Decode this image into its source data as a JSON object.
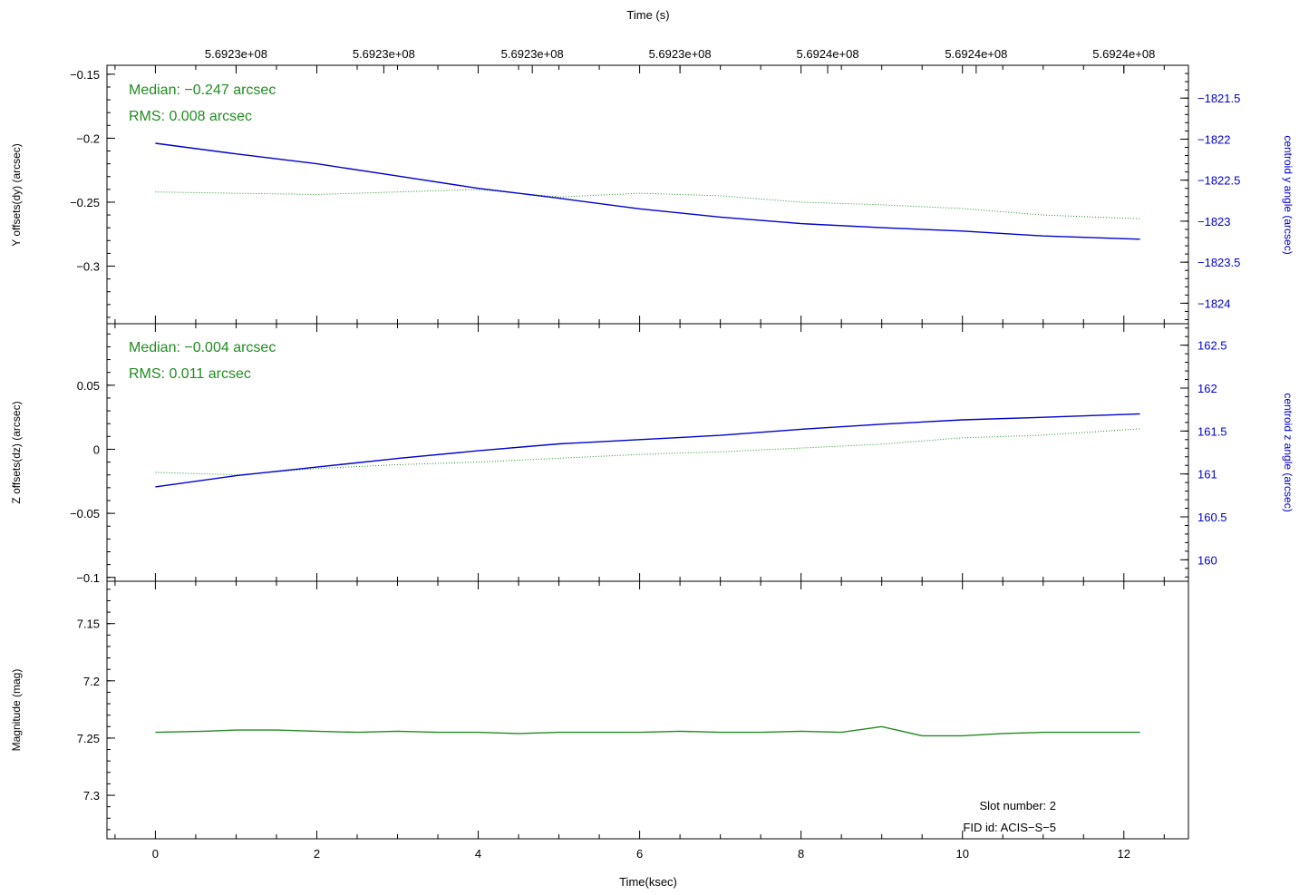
{
  "top_axis": {
    "label": "Time (s)",
    "tick_positions_ksec": [
      1.0,
      2.83,
      4.67,
      6.5,
      8.33,
      10.17,
      12.0
    ],
    "tick_labels": [
      "5.6923e+08",
      "5.6923e+08",
      "5.6923e+08",
      "5.6923e+08",
      "5.6924e+08",
      "5.6924e+08",
      "5.6924e+08"
    ]
  },
  "bottom_axis": {
    "label": "Time(ksec)",
    "ticks": [
      0,
      2,
      4,
      6,
      8,
      10,
      12
    ],
    "tick_labels": [
      "0",
      "2",
      "4",
      "6",
      "8",
      "10",
      "12"
    ]
  },
  "colors": {
    "offset": "#228B22",
    "centroid": "#0000CC",
    "magnitude": "#228B22",
    "axis": "#000000"
  },
  "panels": {
    "y": {
      "ylabel": "Y offsets(dy) (arcsec)",
      "ticks": [
        -0.15,
        -0.2,
        -0.25,
        -0.3
      ],
      "tick_labels": [
        "−0.15",
        "−0.2",
        "−0.25",
        "−0.3"
      ],
      "stat_median": "Median: −0.247 arcsec",
      "stat_rms": "RMS: 0.008 arcsec",
      "right_label": "centroid y angle (arcsec)",
      "right_ticks": [
        -1821.5,
        -1822,
        -1822.5,
        -1823,
        -1823.5,
        -1824
      ],
      "right_tick_labels": [
        "−1821.5",
        "−1822",
        "−1822.5",
        "−1823",
        "−1823.5",
        "−1824"
      ]
    },
    "z": {
      "ylabel": "Z offsets(dz) (arcsec)",
      "ticks": [
        0.05,
        0,
        -0.05,
        -0.1
      ],
      "tick_labels": [
        "0.05",
        "0",
        "−0.05",
        "−0.1"
      ],
      "stat_median": "Median: −0.004 arcsec",
      "stat_rms": "RMS: 0.011 arcsec",
      "right_label": "centroid z angle (arcsec)",
      "right_ticks": [
        162.5,
        162,
        161.5,
        161,
        160.5,
        160
      ],
      "right_tick_labels": [
        "162.5",
        "162",
        "161.5",
        "161",
        "160.5",
        "160"
      ]
    },
    "mag": {
      "ylabel": "Magnitude (mag)",
      "ticks": [
        7.15,
        7.2,
        7.25,
        7.3
      ],
      "tick_labels": [
        "7.15",
        "7.2",
        "7.25",
        "7.3"
      ],
      "slot": "Slot number: 2",
      "fid": "FID id: ACIS−S−5"
    }
  },
  "chart_data": {
    "type": "line",
    "xlim": [
      -0.6,
      12.8
    ],
    "panels": [
      {
        "name": "dy",
        "ylim": [
          -0.345,
          -0.143
        ],
        "right_ylim": [
          -1824.25,
          -1821.1
        ],
        "series": [
          {
            "name": "",
            "style": "dotted",
            "axis": "left",
            "x": [
              0,
              1,
              2,
              3,
              4,
              5,
              6,
              7,
              8,
              9,
              10,
              11,
              12.2
            ],
            "y": [
              -0.242,
              -0.243,
              -0.244,
              -0.242,
              -0.24,
              -0.246,
              -0.243,
              -0.245,
              -0.25,
              -0.252,
              -0.255,
              -0.26,
              -0.263
            ]
          },
          {
            "name": "",
            "style": "solid",
            "axis": "right",
            "x": [
              0,
              1,
              2,
              3,
              4,
              5,
              6,
              7,
              8,
              9,
              10,
              11,
              12.2
            ],
            "y": [
              -1822.05,
              -1822.18,
              -1822.3,
              -1822.45,
              -1822.6,
              -1822.72,
              -1822.85,
              -1822.95,
              -1823.03,
              -1823.08,
              -1823.12,
              -1823.18,
              -1823.22
            ]
          }
        ]
      },
      {
        "name": "dz",
        "ylim": [
          -0.103,
          0.098
        ],
        "right_ylim": [
          159.75,
          162.75
        ],
        "series": [
          {
            "name": "",
            "style": "dotted",
            "axis": "left",
            "x": [
              0,
              1,
              2,
              3,
              4,
              5,
              6,
              7,
              8,
              9,
              10,
              11,
              12.2
            ],
            "y": [
              -0.018,
              -0.02,
              -0.015,
              -0.012,
              -0.01,
              -0.007,
              -0.004,
              -0.002,
              0.001,
              0.004,
              0.009,
              0.011,
              0.016
            ]
          },
          {
            "name": "",
            "style": "solid",
            "axis": "right",
            "x": [
              0,
              1,
              2,
              3,
              4,
              5,
              6,
              7,
              8,
              9,
              10,
              11,
              12.2
            ],
            "y": [
              160.85,
              160.98,
              161.08,
              161.18,
              161.27,
              161.35,
              161.4,
              161.45,
              161.52,
              161.58,
              161.63,
              161.66,
              161.7
            ]
          }
        ]
      },
      {
        "name": "mag",
        "ylim": [
          7.113,
          7.338
        ],
        "inverted": true,
        "series": [
          {
            "name": "",
            "style": "solid",
            "axis": "left",
            "x": [
              0,
              0.6,
              1,
              1.5,
              2,
              2.5,
              3,
              3.5,
              4,
              4.5,
              5,
              5.5,
              6,
              6.5,
              7,
              7.5,
              8,
              8.5,
              9,
              9.5,
              10,
              10.5,
              11,
              11.5,
              12.2
            ],
            "y": [
              7.245,
              7.244,
              7.243,
              7.243,
              7.244,
              7.245,
              7.244,
              7.245,
              7.245,
              7.246,
              7.245,
              7.245,
              7.245,
              7.244,
              7.245,
              7.245,
              7.244,
              7.245,
              7.24,
              7.248,
              7.248,
              7.246,
              7.245,
              7.245,
              7.245
            ]
          }
        ]
      }
    ]
  }
}
